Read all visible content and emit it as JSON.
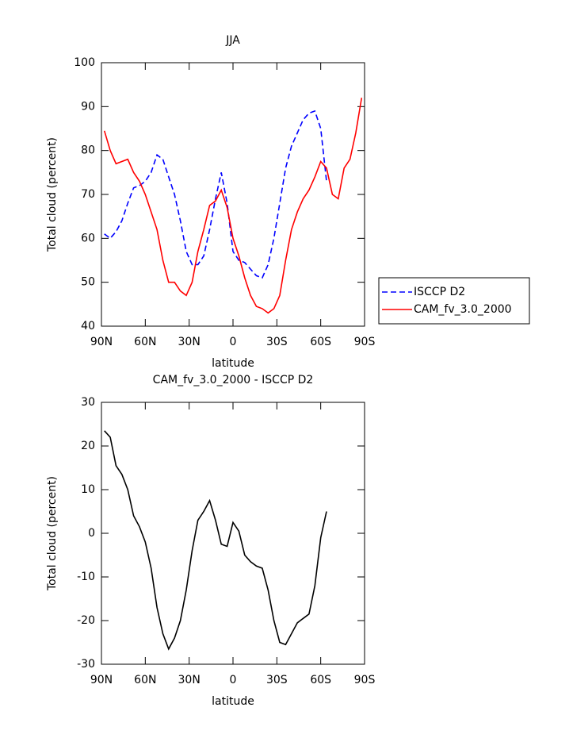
{
  "chart_data": [
    {
      "type": "line",
      "title": "JJA",
      "xlabel": "latitude",
      "ylabel": "Total cloud (percent)",
      "x": [
        88,
        84,
        80,
        76,
        72,
        68,
        64,
        60,
        56,
        52,
        48,
        44,
        40,
        36,
        32,
        28,
        24,
        20,
        16,
        12,
        8,
        4,
        0,
        -4,
        -8,
        -12,
        -16,
        -20,
        -24,
        -28,
        -32,
        -36,
        -40,
        -44,
        -48,
        -52,
        -56,
        -60,
        -64,
        -68,
        -72,
        -76,
        -80,
        -84,
        -88
      ],
      "series": [
        {
          "name": "ISCCP D2",
          "color": "#0000ff",
          "style": "dashed",
          "values": [
            61,
            60,
            61.5,
            64,
            68,
            71.5,
            72,
            73,
            75,
            79,
            78,
            74,
            70,
            64,
            57,
            54,
            54,
            56,
            62,
            69,
            75,
            68,
            57,
            55,
            54.5,
            53,
            51.5,
            51,
            54,
            60,
            68,
            76,
            81,
            84,
            87,
            88.5,
            89,
            85,
            73,
            null,
            null,
            null,
            null,
            null,
            null
          ]
        },
        {
          "name": "CAM_fv_3.0_2000",
          "color": "#ff0000",
          "style": "solid",
          "values": [
            84.5,
            80,
            77,
            77.5,
            78,
            75,
            73,
            70,
            66,
            62,
            55,
            50,
            50,
            48,
            47,
            50,
            57,
            62,
            67.5,
            68.5,
            71,
            67,
            60,
            56,
            51,
            47,
            44.5,
            44,
            43,
            44,
            47,
            55,
            62,
            66,
            69,
            71,
            74,
            77.5,
            76,
            70,
            69,
            76,
            78,
            84,
            92
          ]
        }
      ],
      "xlim": [
        90,
        -90
      ],
      "xticks": [
        {
          "value": 90,
          "label": "90N"
        },
        {
          "value": 60,
          "label": "60N"
        },
        {
          "value": 30,
          "label": "30N"
        },
        0,
        {
          "value": -30,
          "label": "30S"
        },
        {
          "value": -60,
          "label": "60S"
        },
        {
          "value": -90,
          "label": "90S"
        }
      ],
      "ylim": [
        40,
        100
      ],
      "yticks": [
        40,
        50,
        60,
        70,
        80,
        90,
        100
      ],
      "legend": "right"
    },
    {
      "type": "line",
      "title": "CAM_fv_3.0_2000 - ISCCP D2",
      "xlabel": "latitude",
      "ylabel": "Total cloud (percent)",
      "x": [
        88,
        84,
        80,
        76,
        72,
        68,
        64,
        60,
        56,
        52,
        48,
        44,
        40,
        36,
        32,
        28,
        24,
        20,
        16,
        12,
        8,
        4,
        0,
        -4,
        -8,
        -12,
        -16,
        -20,
        -24,
        -28,
        -32,
        -36,
        -40,
        -44,
        -48,
        -52,
        -56,
        -60,
        -64
      ],
      "series": [
        {
          "color": "#000000",
          "style": "solid",
          "values": [
            23.5,
            22,
            15.5,
            13.5,
            10,
            4,
            1.5,
            -2,
            -8,
            -17,
            -23,
            -26.5,
            -24,
            -20,
            -13,
            -4,
            3,
            5,
            7.5,
            3,
            -2.5,
            -3,
            2.5,
            0.5,
            -5,
            -6.5,
            -7.5,
            -8,
            -13,
            -20,
            -25,
            -25.5,
            -23,
            -20.5,
            -19.5,
            -18.5,
            -12,
            -1,
            5
          ]
        }
      ],
      "xlim": [
        90,
        -90
      ],
      "xticks": [
        {
          "value": 90,
          "label": "90N"
        },
        {
          "value": 60,
          "label": "60N"
        },
        {
          "value": 30,
          "label": "30N"
        },
        0,
        {
          "value": -30,
          "label": "30S"
        },
        {
          "value": -60,
          "label": "60S"
        },
        {
          "value": -90,
          "label": "90S"
        }
      ],
      "ylim": [
        -30,
        30
      ],
      "yticks": [
        -30,
        -20,
        -10,
        0,
        10,
        20,
        30
      ]
    }
  ]
}
